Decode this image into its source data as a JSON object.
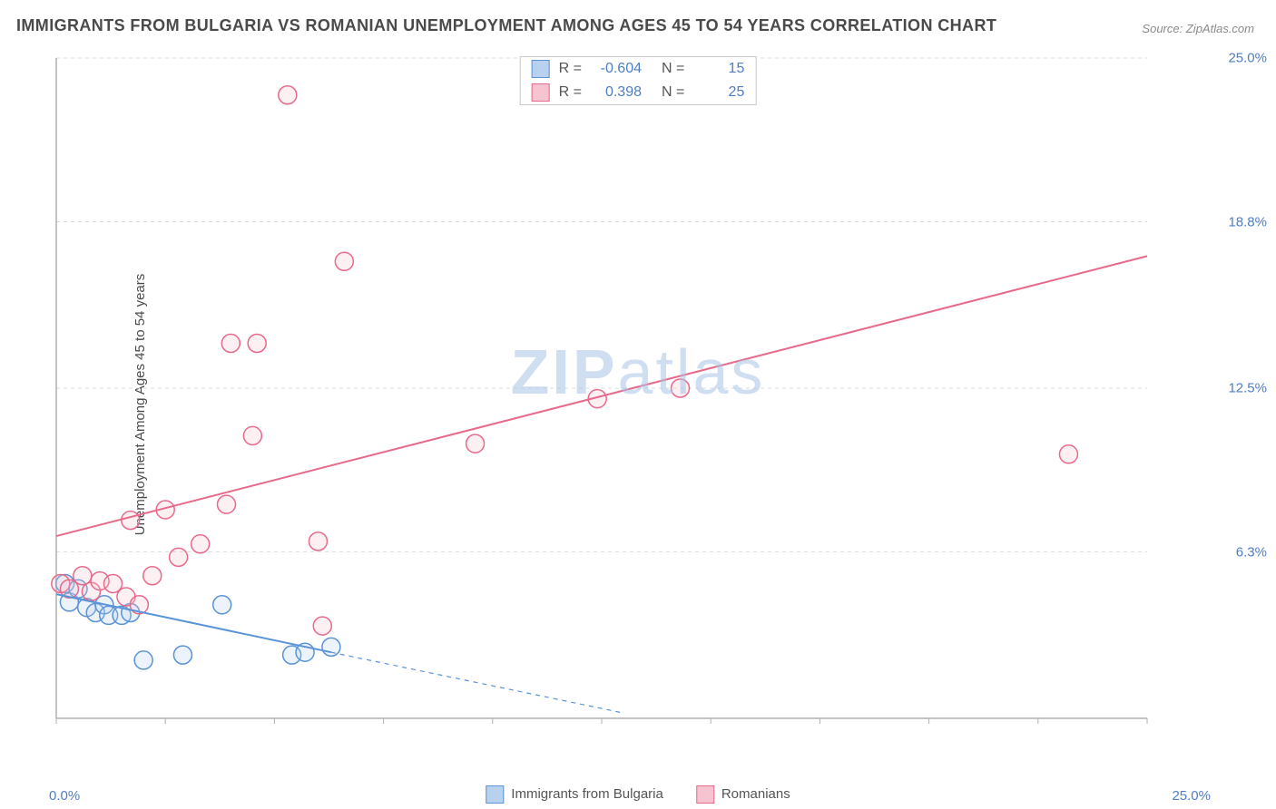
{
  "title": "IMMIGRANTS FROM BULGARIA VS ROMANIAN UNEMPLOYMENT AMONG AGES 45 TO 54 YEARS CORRELATION CHART",
  "source_label": "Source:",
  "source_value": "ZipAtlas.com",
  "ylabel": "Unemployment Among Ages 45 to 54 years",
  "watermark_a": "ZIP",
  "watermark_b": "atlas",
  "chart": {
    "type": "scatter",
    "background_color": "#ffffff",
    "grid_color": "#dcdcdc",
    "axis_color": "#b0b0b0",
    "xlim": [
      0,
      25
    ],
    "ylim": [
      0,
      25
    ],
    "y_ticks": [
      6.3,
      12.5,
      18.8,
      25.0
    ],
    "y_tick_labels": [
      "6.3%",
      "12.5%",
      "18.8%",
      "25.0%"
    ],
    "x_min_label": "0.0%",
    "x_max_label": "25.0%",
    "x_minor_ticks_every": 2.5,
    "marker_radius": 10,
    "marker_stroke_width": 1.5,
    "marker_fill_opacity": 0.25,
    "line_width": 2,
    "dash_pattern": "5 5",
    "series": [
      {
        "key": "bulgaria",
        "label": "Immigrants from Bulgaria",
        "color": "#5a93d6",
        "fill": "#b7d1ee",
        "R": "-0.604",
        "N": "15",
        "trend": {
          "x1": 0,
          "y1": 4.7,
          "x2": 6.3,
          "y2": 2.5
        },
        "trend_extrap": {
          "x1": 6.3,
          "y1": 2.5,
          "x2": 13.0,
          "y2": 0.2
        },
        "points": [
          [
            0.2,
            5.1
          ],
          [
            0.3,
            4.4
          ],
          [
            0.5,
            4.9
          ],
          [
            0.7,
            4.2
          ],
          [
            0.9,
            4.0
          ],
          [
            1.1,
            4.3
          ],
          [
            1.2,
            3.9
          ],
          [
            1.5,
            3.9
          ],
          [
            1.7,
            4.0
          ],
          [
            2.0,
            2.2
          ],
          [
            2.9,
            2.4
          ],
          [
            3.8,
            4.3
          ],
          [
            5.4,
            2.4
          ],
          [
            5.7,
            2.5
          ],
          [
            6.3,
            2.7
          ]
        ]
      },
      {
        "key": "romanians",
        "label": "Romanians",
        "color": "#e86a8a",
        "fill": "#f6c3d0",
        "R": "0.398",
        "N": "25",
        "trend": {
          "x1": 0,
          "y1": 6.9,
          "x2": 25,
          "y2": 17.5
        },
        "points": [
          [
            0.1,
            5.1
          ],
          [
            0.3,
            4.9
          ],
          [
            0.6,
            5.4
          ],
          [
            0.8,
            4.8
          ],
          [
            1.0,
            5.2
          ],
          [
            1.3,
            5.1
          ],
          [
            1.6,
            4.6
          ],
          [
            1.9,
            4.3
          ],
          [
            2.2,
            5.4
          ],
          [
            2.8,
            6.1
          ],
          [
            1.7,
            7.5
          ],
          [
            2.5,
            7.9
          ],
          [
            3.3,
            6.6
          ],
          [
            3.9,
            8.1
          ],
          [
            4.5,
            10.7
          ],
          [
            4.0,
            14.2
          ],
          [
            4.6,
            14.2
          ],
          [
            6.1,
            3.5
          ],
          [
            6.0,
            6.7
          ],
          [
            6.6,
            17.3
          ],
          [
            5.3,
            23.6
          ],
          [
            9.6,
            10.4
          ],
          [
            12.4,
            12.1
          ],
          [
            14.3,
            12.5
          ],
          [
            23.2,
            10.0
          ]
        ]
      }
    ]
  },
  "legend_top": {
    "r_label": "R =",
    "n_label": "N ="
  }
}
